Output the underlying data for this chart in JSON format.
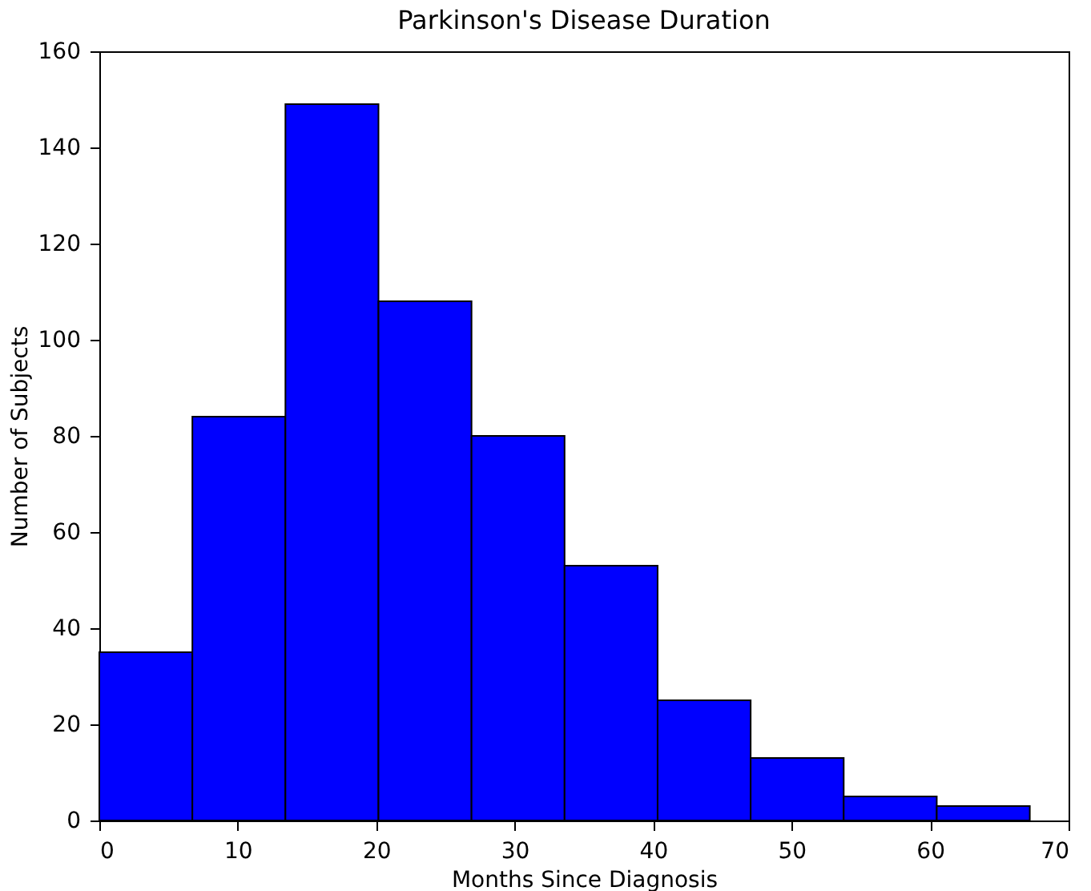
{
  "chart_data": {
    "type": "histogram",
    "title": "Parkinson's Disease Duration",
    "xlabel": "Months Since Diagnosis",
    "ylabel": "Number of Subjects",
    "bins": [
      0,
      6.72,
      13.44,
      20.16,
      26.88,
      33.6,
      40.32,
      47.04,
      53.76,
      60.48,
      67.2
    ],
    "values": [
      35,
      84,
      149,
      108,
      80,
      53,
      25,
      13,
      5,
      3
    ],
    "color": "#0000ff",
    "xlim": [
      0,
      70
    ],
    "xticks": [
      0,
      10,
      20,
      30,
      40,
      50,
      60,
      70
    ],
    "ylim": [
      0,
      160
    ],
    "yticks": [
      0,
      20,
      40,
      60,
      80,
      100,
      120,
      140,
      160
    ],
    "grid": false
  }
}
